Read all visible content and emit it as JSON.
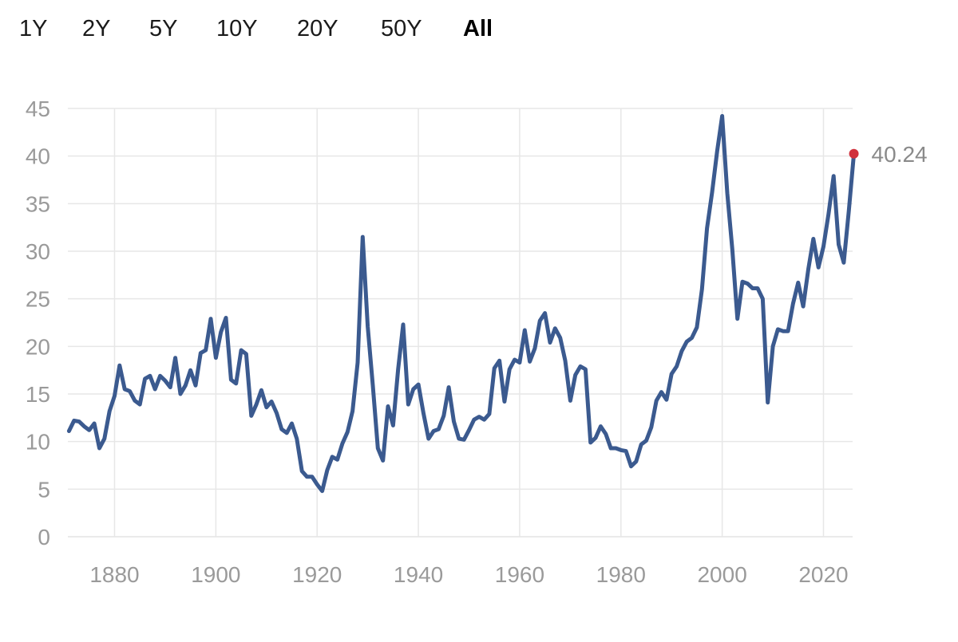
{
  "range_selector": {
    "options": [
      "1Y",
      "2Y",
      "5Y",
      "10Y",
      "20Y",
      "50Y",
      "All"
    ],
    "selected": "All"
  },
  "colors": {
    "line": "#3b5a8f",
    "end_marker": "#d0313d",
    "grid": "#e7e7e7",
    "tick_text": "#9a9a9a"
  },
  "chart_data": {
    "type": "line",
    "title": "",
    "xlabel": "",
    "ylabel": "",
    "xlim": [
      1870,
      2026
    ],
    "ylim": [
      0,
      45
    ],
    "x_ticks": [
      "1880",
      "1900",
      "1920",
      "1940",
      "1960",
      "1980",
      "2000",
      "2020"
    ],
    "y_ticks": [
      "0",
      "5",
      "10",
      "15",
      "20",
      "25",
      "30",
      "35",
      "40",
      "45"
    ],
    "grid": true,
    "last_value_label": "40.24",
    "series": [
      {
        "x": [
          1871,
          1872,
          1873,
          1874,
          1875,
          1876,
          1877,
          1878,
          1879,
          1880,
          1881,
          1882,
          1883,
          1884,
          1885,
          1886,
          1887,
          1888,
          1889,
          1890,
          1891,
          1892,
          1893,
          1894,
          1895,
          1896,
          1897,
          1898,
          1899,
          1900,
          1901,
          1902,
          1903,
          1904,
          1905,
          1906,
          1907,
          1908,
          1909,
          1910,
          1911,
          1912,
          1913,
          1914,
          1915,
          1916,
          1917,
          1918,
          1919,
          1920,
          1921,
          1922,
          1923,
          1924,
          1925,
          1926,
          1927,
          1928,
          1929,
          1930,
          1931,
          1932,
          1933,
          1934,
          1935,
          1936,
          1937,
          1938,
          1939,
          1940,
          1941,
          1942,
          1943,
          1944,
          1945,
          1946,
          1947,
          1948,
          1949,
          1950,
          1951,
          1952,
          1953,
          1954,
          1955,
          1956,
          1957,
          1958,
          1959,
          1960,
          1961,
          1962,
          1963,
          1964,
          1965,
          1966,
          1967,
          1968,
          1969,
          1970,
          1971,
          1972,
          1973,
          1974,
          1975,
          1976,
          1977,
          1978,
          1979,
          1980,
          1981,
          1982,
          1983,
          1984,
          1985,
          1986,
          1987,
          1988,
          1989,
          1990,
          1991,
          1992,
          1993,
          1994,
          1995,
          1996,
          1997,
          1998,
          1999,
          2000,
          2001,
          2002,
          2003,
          2004,
          2005,
          2006,
          2007,
          2008,
          2009,
          2010,
          2011,
          2012,
          2013,
          2014,
          2015,
          2016,
          2017,
          2018,
          2019,
          2020,
          2021,
          2022,
          2023,
          2024,
          2025,
          2026
        ],
        "y": [
          11.1,
          12.2,
          12.1,
          11.6,
          11.2,
          11.9,
          9.3,
          10.3,
          13.2,
          14.8,
          18.0,
          15.5,
          15.3,
          14.3,
          13.9,
          16.6,
          16.9,
          15.5,
          16.9,
          16.4,
          15.7,
          18.8,
          15.0,
          15.9,
          17.5,
          15.9,
          19.3,
          19.6,
          22.9,
          18.8,
          21.5,
          23.0,
          16.5,
          16.1,
          19.6,
          19.2,
          12.7,
          13.9,
          15.4,
          13.6,
          14.2,
          13.0,
          11.3,
          10.9,
          11.9,
          10.3,
          6.9,
          6.3,
          6.3,
          5.5,
          4.8,
          7.0,
          8.4,
          8.1,
          9.8,
          11.0,
          13.2,
          18.3,
          31.5,
          22.1,
          15.9,
          9.3,
          8.0,
          13.7,
          11.7,
          17.6,
          22.3,
          13.9,
          15.5,
          16.0,
          13.0,
          10.3,
          11.1,
          11.3,
          12.7,
          15.7,
          12.1,
          10.3,
          10.2,
          11.2,
          12.3,
          12.6,
          12.3,
          12.9,
          17.7,
          18.5,
          14.2,
          17.6,
          18.6,
          18.3,
          21.7,
          18.4,
          19.8,
          22.7,
          23.5,
          20.4,
          21.9,
          20.9,
          18.5,
          14.3,
          17.0,
          17.9,
          17.6,
          9.9,
          10.4,
          11.6,
          10.8,
          9.3,
          9.3,
          9.1,
          9.0,
          7.4,
          7.9,
          9.7,
          10.1,
          11.5,
          14.3,
          15.2,
          14.4,
          17.1,
          17.9,
          19.5,
          20.5,
          20.9,
          22.0,
          26.0,
          32.4,
          36.2,
          40.5,
          44.2,
          36.1,
          30.2,
          22.9,
          26.8,
          26.6,
          26.1,
          26.1,
          25.0,
          14.1,
          20.0,
          21.8,
          21.6,
          21.6,
          24.5,
          26.7,
          24.2,
          28.1,
          31.3,
          28.3,
          30.5,
          33.9,
          37.9,
          30.7,
          28.8,
          34.2,
          40.24
        ]
      }
    ]
  }
}
